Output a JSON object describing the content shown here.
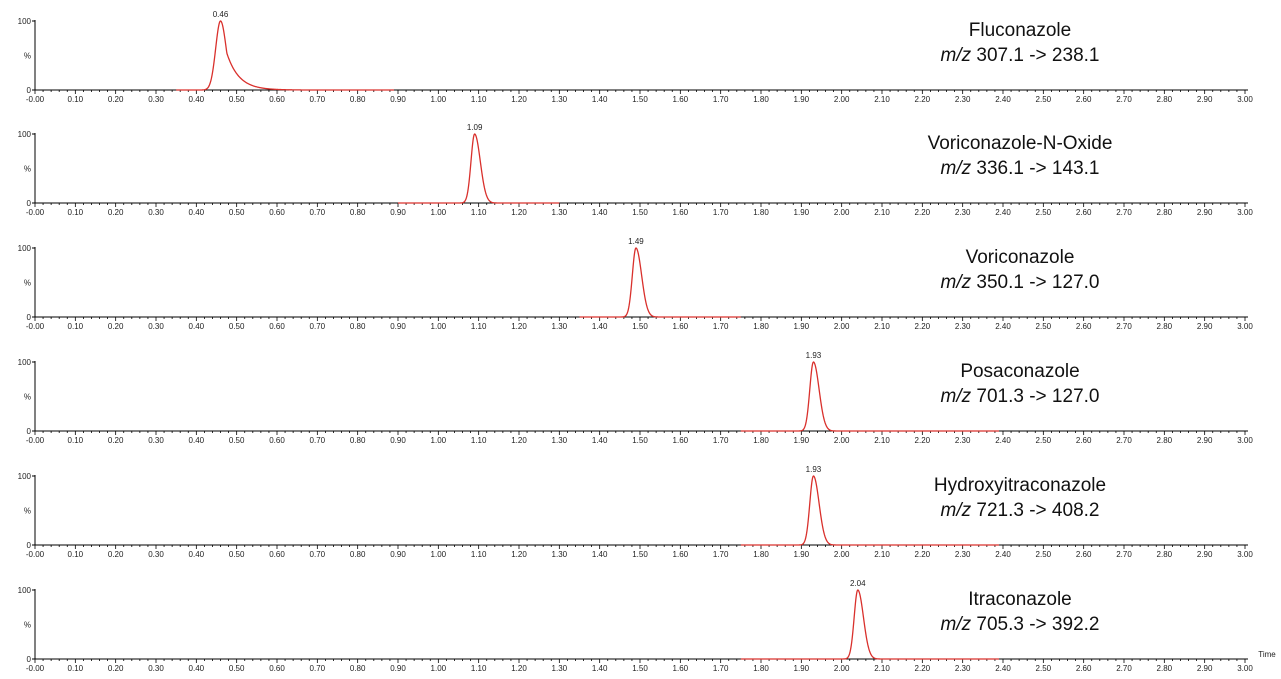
{
  "chart_data": [
    {
      "type": "line",
      "compound": "Fluconazole",
      "transition_prefix": "m/z",
      "transition": "307.1 -> 238.1",
      "peak_rt": 0.46,
      "peak_label": "0.46",
      "baseline_range": [
        0.35,
        0.89
      ],
      "xlim": [
        0.0,
        3.0
      ],
      "y_tick_labels": [
        "100",
        "%",
        "0"
      ],
      "color": "#d9302c"
    },
    {
      "type": "line",
      "compound": "Voriconazole-N-Oxide",
      "transition_prefix": "m/z",
      "transition": "336.1 -> 143.1",
      "peak_rt": 1.09,
      "peak_label": "1.09",
      "baseline_range": [
        0.9,
        1.3
      ],
      "xlim": [
        0.0,
        3.0
      ],
      "y_tick_labels": [
        "100",
        "%",
        "0"
      ],
      "color": "#d9302c"
    },
    {
      "type": "line",
      "compound": "Voriconazole",
      "transition_prefix": "m/z",
      "transition": "350.1 -> 127.0",
      "peak_rt": 1.49,
      "peak_label": "1.49",
      "baseline_range": [
        1.35,
        1.75
      ],
      "xlim": [
        0.0,
        3.0
      ],
      "y_tick_labels": [
        "100",
        "%",
        "0"
      ],
      "color": "#d9302c"
    },
    {
      "type": "line",
      "compound": "Posaconazole",
      "transition_prefix": "m/z",
      "transition": "701.3 -> 127.0",
      "peak_rt": 1.93,
      "peak_label": "1.93",
      "baseline_range": [
        1.75,
        2.39
      ],
      "xlim": [
        0.0,
        3.0
      ],
      "y_tick_labels": [
        "100",
        "%",
        "0"
      ],
      "color": "#d9302c"
    },
    {
      "type": "line",
      "compound": "Hydroxyitraconazole",
      "transition_prefix": "m/z",
      "transition": "721.3 -> 408.2",
      "peak_rt": 1.93,
      "peak_label": "1.93",
      "baseline_range": [
        1.75,
        2.39
      ],
      "xlim": [
        0.0,
        3.0
      ],
      "y_tick_labels": [
        "100",
        "%",
        "0"
      ],
      "color": "#d9302c"
    },
    {
      "type": "line",
      "compound": "Itraconazole",
      "transition_prefix": "m/z",
      "transition": "705.3 -> 392.2",
      "peak_rt": 2.04,
      "peak_label": "2.04",
      "baseline_range": [
        1.75,
        2.39
      ],
      "xlim": [
        0.0,
        3.0
      ],
      "y_tick_labels": [
        "100",
        "%",
        "0"
      ],
      "color": "#d9302c"
    }
  ],
  "x_tick_labels": [
    "-0.00",
    "0.10",
    "0.20",
    "0.30",
    "0.40",
    "0.50",
    "0.60",
    "0.70",
    "0.80",
    "0.90",
    "1.00",
    "1.10",
    "1.20",
    "1.30",
    "1.40",
    "1.50",
    "1.60",
    "1.70",
    "1.80",
    "1.90",
    "2.00",
    "2.10",
    "2.20",
    "2.30",
    "2.40",
    "2.50",
    "2.60",
    "2.70",
    "2.80",
    "2.90",
    "3.00"
  ],
  "x_axis_title": "Time"
}
